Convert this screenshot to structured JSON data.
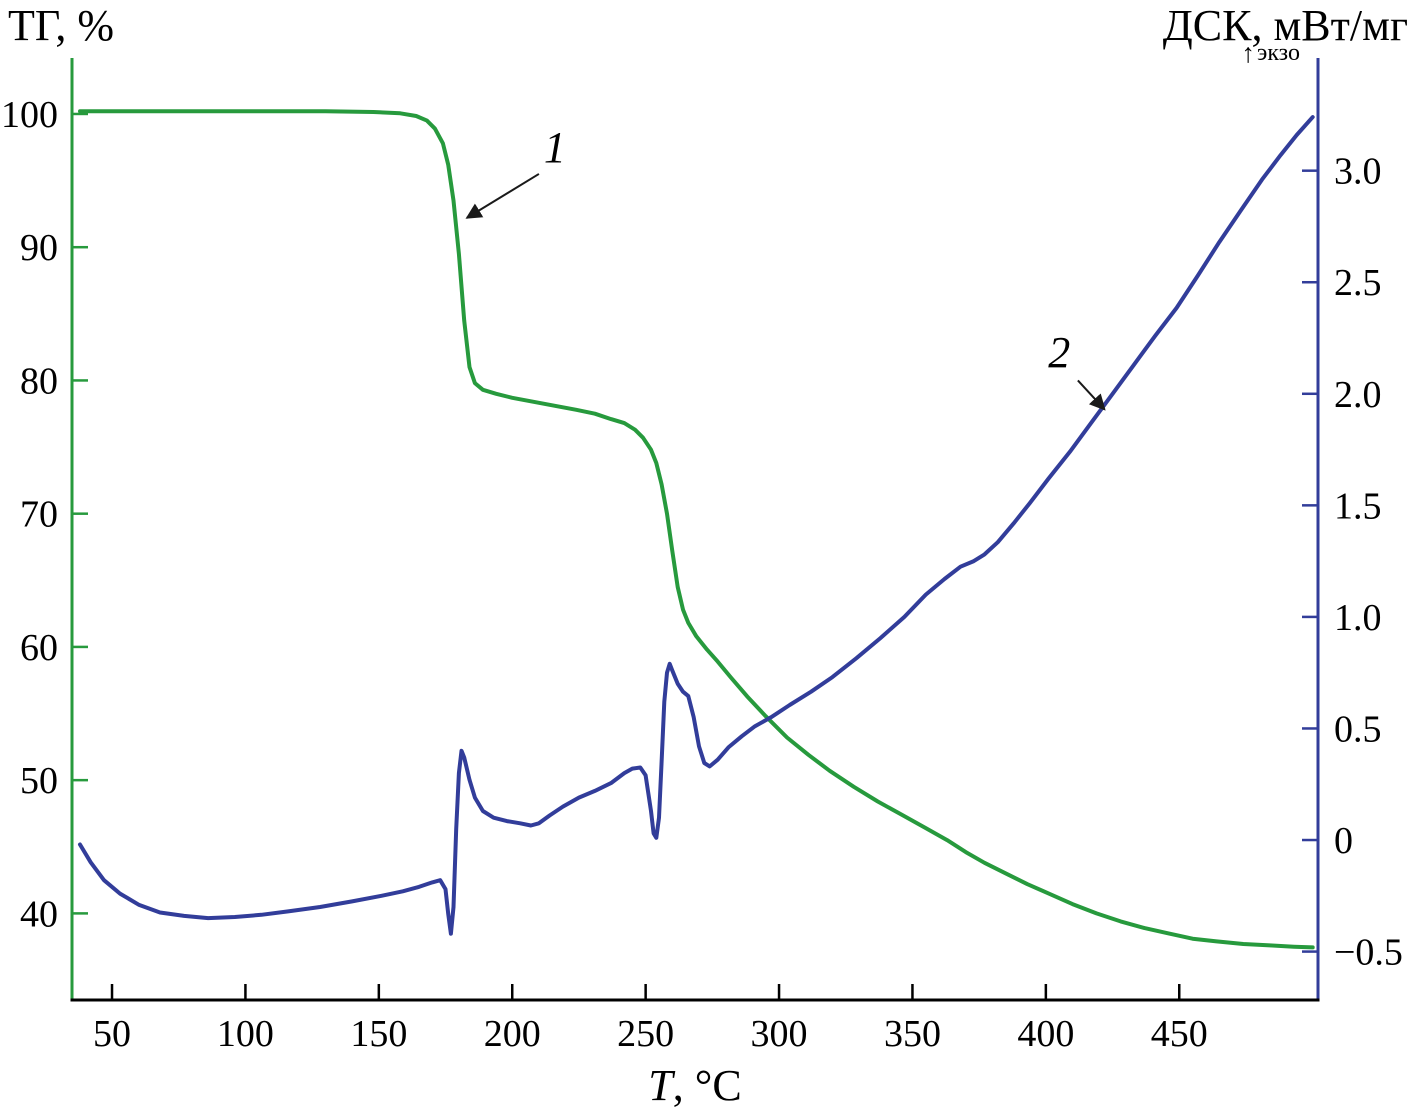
{
  "chart_data": {
    "type": "line",
    "title": "",
    "grid": false,
    "legend": "none",
    "x_axis": {
      "label_italic": "T",
      "label_rest": ", °C",
      "color": "#000000",
      "range": [
        35,
        502
      ],
      "tick_values": [
        50,
        100,
        150,
        200,
        250,
        300,
        350,
        400,
        450
      ],
      "tick_labels": [
        "50",
        "100",
        "150",
        "200",
        "250",
        "300",
        "350",
        "400",
        "450"
      ]
    },
    "left_axis": {
      "label": "ТГ, %",
      "color": "#279a3d",
      "range": [
        33.5,
        104.2
      ],
      "tick_values": [
        40,
        50,
        60,
        70,
        80,
        90,
        100
      ],
      "tick_labels": [
        "40",
        "50",
        "60",
        "70",
        "80",
        "90",
        "100"
      ]
    },
    "right_axis": {
      "label": "ДСК, мВт/мг",
      "exo_label": "экзо",
      "exo_arrow": "↑",
      "color": "#323d9a",
      "range": [
        -0.717,
        3.505
      ],
      "tick_values": [
        -0.5,
        0,
        0.5,
        1.0,
        1.5,
        2.0,
        2.5,
        3.0
      ],
      "tick_labels": [
        "−0.5",
        "0",
        "0.5",
        "1.0",
        "1.5",
        "2.0",
        "2.5",
        "3.0"
      ]
    },
    "series": [
      {
        "name": "1",
        "axis": "left",
        "color": "#279a3d",
        "points": [
          [
            38,
            100.2
          ],
          [
            70,
            100.2
          ],
          [
            100,
            100.2
          ],
          [
            130,
            100.2
          ],
          [
            148,
            100.15
          ],
          [
            158,
            100.05
          ],
          [
            164,
            99.85
          ],
          [
            168,
            99.5
          ],
          [
            171,
            98.9
          ],
          [
            174,
            97.8
          ],
          [
            176,
            96.2
          ],
          [
            178,
            93.5
          ],
          [
            180,
            89.5
          ],
          [
            182,
            84.5
          ],
          [
            184,
            81.0
          ],
          [
            186,
            79.8
          ],
          [
            189,
            79.3
          ],
          [
            194,
            79.0
          ],
          [
            200,
            78.7
          ],
          [
            208,
            78.4
          ],
          [
            216,
            78.1
          ],
          [
            224,
            77.8
          ],
          [
            231,
            77.5
          ],
          [
            237,
            77.1
          ],
          [
            242,
            76.8
          ],
          [
            246,
            76.3
          ],
          [
            249,
            75.7
          ],
          [
            252,
            74.8
          ],
          [
            254,
            73.8
          ],
          [
            256,
            72.2
          ],
          [
            258,
            70.0
          ],
          [
            260,
            67.2
          ],
          [
            262,
            64.5
          ],
          [
            264,
            62.8
          ],
          [
            266,
            61.8
          ],
          [
            269,
            60.8
          ],
          [
            273,
            59.8
          ],
          [
            277,
            58.9
          ],
          [
            282,
            57.7
          ],
          [
            288,
            56.3
          ],
          [
            295,
            54.8
          ],
          [
            303,
            53.2
          ],
          [
            311,
            51.9
          ],
          [
            319,
            50.7
          ],
          [
            328,
            49.5
          ],
          [
            337,
            48.4
          ],
          [
            346,
            47.4
          ],
          [
            355,
            46.4
          ],
          [
            363,
            45.5
          ],
          [
            370,
            44.6
          ],
          [
            377,
            43.8
          ],
          [
            385,
            43.0
          ],
          [
            393,
            42.2
          ],
          [
            401,
            41.5
          ],
          [
            410,
            40.7
          ],
          [
            419,
            40.0
          ],
          [
            428,
            39.4
          ],
          [
            437,
            38.9
          ],
          [
            446,
            38.5
          ],
          [
            455,
            38.1
          ],
          [
            464,
            37.9
          ],
          [
            474,
            37.7
          ],
          [
            484,
            37.6
          ],
          [
            493,
            37.5
          ],
          [
            500,
            37.45
          ]
        ]
      },
      {
        "name": "2",
        "axis": "right",
        "color": "#323d9a",
        "points": [
          [
            38,
            -0.02
          ],
          [
            42,
            -0.1
          ],
          [
            47,
            -0.18
          ],
          [
            53,
            -0.24
          ],
          [
            60,
            -0.29
          ],
          [
            68,
            -0.325
          ],
          [
            77,
            -0.34
          ],
          [
            86,
            -0.35
          ],
          [
            96,
            -0.345
          ],
          [
            106,
            -0.335
          ],
          [
            116,
            -0.32
          ],
          [
            128,
            -0.3
          ],
          [
            140,
            -0.275
          ],
          [
            151,
            -0.25
          ],
          [
            159,
            -0.23
          ],
          [
            165,
            -0.21
          ],
          [
            170,
            -0.19
          ],
          [
            173,
            -0.18
          ],
          [
            175,
            -0.22
          ],
          [
            176,
            -0.33
          ],
          [
            177,
            -0.42
          ],
          [
            178,
            -0.3
          ],
          [
            179,
            0.05
          ],
          [
            180,
            0.3
          ],
          [
            181,
            0.4
          ],
          [
            182,
            0.37
          ],
          [
            184,
            0.27
          ],
          [
            186,
            0.19
          ],
          [
            189,
            0.13
          ],
          [
            193,
            0.1
          ],
          [
            198,
            0.085
          ],
          [
            203,
            0.075
          ],
          [
            207,
            0.065
          ],
          [
            210,
            0.075
          ],
          [
            214,
            0.11
          ],
          [
            219,
            0.15
          ],
          [
            225,
            0.19
          ],
          [
            231,
            0.22
          ],
          [
            237,
            0.255
          ],
          [
            242,
            0.3
          ],
          [
            245,
            0.32
          ],
          [
            248,
            0.325
          ],
          [
            250,
            0.29
          ],
          [
            252,
            0.13
          ],
          [
            253,
            0.03
          ],
          [
            254,
            0.01
          ],
          [
            255,
            0.1
          ],
          [
            256,
            0.35
          ],
          [
            257,
            0.62
          ],
          [
            258,
            0.75
          ],
          [
            259,
            0.79
          ],
          [
            260,
            0.76
          ],
          [
            262,
            0.7
          ],
          [
            264,
            0.665
          ],
          [
            266,
            0.645
          ],
          [
            268,
            0.55
          ],
          [
            270,
            0.42
          ],
          [
            272,
            0.345
          ],
          [
            274,
            0.33
          ],
          [
            277,
            0.36
          ],
          [
            281,
            0.415
          ],
          [
            286,
            0.465
          ],
          [
            291,
            0.51
          ],
          [
            297,
            0.55
          ],
          [
            304,
            0.605
          ],
          [
            312,
            0.665
          ],
          [
            320,
            0.73
          ],
          [
            329,
            0.815
          ],
          [
            338,
            0.905
          ],
          [
            347,
            1.0
          ],
          [
            355,
            1.1
          ],
          [
            362,
            1.17
          ],
          [
            368,
            1.225
          ],
          [
            373,
            1.25
          ],
          [
            377,
            1.28
          ],
          [
            382,
            1.335
          ],
          [
            388,
            1.42
          ],
          [
            394,
            1.51
          ],
          [
            401,
            1.62
          ],
          [
            409,
            1.74
          ],
          [
            417,
            1.87
          ],
          [
            425,
            2.0
          ],
          [
            433,
            2.13
          ],
          [
            441,
            2.26
          ],
          [
            449,
            2.385
          ],
          [
            457,
            2.53
          ],
          [
            465,
            2.68
          ],
          [
            473,
            2.82
          ],
          [
            481,
            2.96
          ],
          [
            488,
            3.07
          ],
          [
            494,
            3.16
          ],
          [
            500,
            3.24
          ]
        ]
      }
    ],
    "annotations": [
      {
        "label": "1",
        "axis": "left",
        "text_at": [
          216,
          96.4
        ],
        "arrow_from": [
          210,
          95.5
        ],
        "arrow_to": [
          183,
          92.2
        ]
      },
      {
        "label": "2",
        "axis": "right",
        "text_at": [
          405,
          2.12
        ],
        "arrow_from": [
          412,
          2.06
        ],
        "arrow_to": [
          422,
          1.93
        ]
      }
    ]
  }
}
